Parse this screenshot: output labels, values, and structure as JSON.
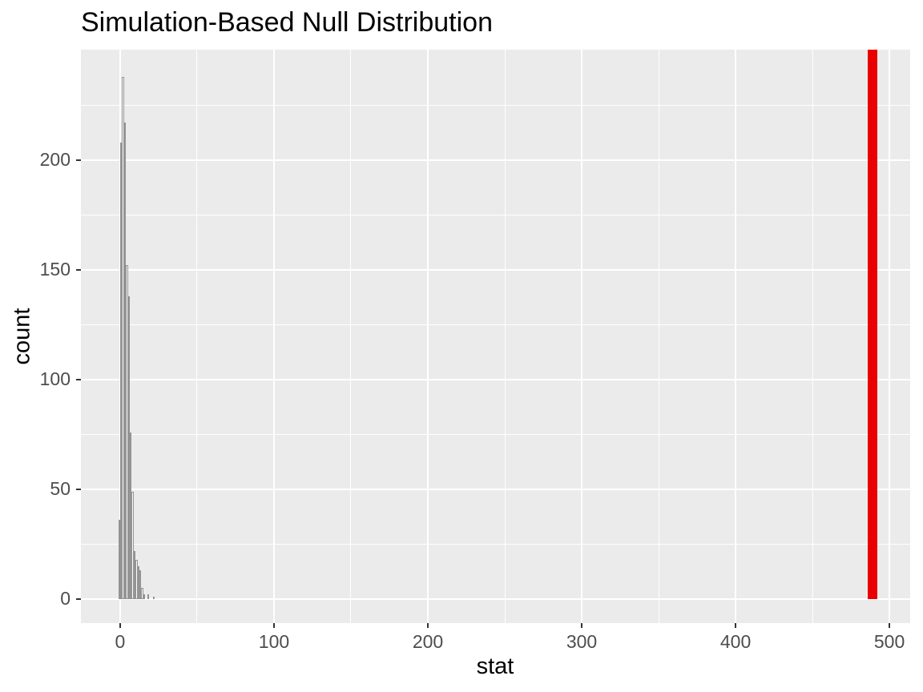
{
  "title": "Simulation-Based Null Distribution",
  "x_axis": {
    "label": "stat",
    "tick_labels": [
      "0",
      "100",
      "200",
      "300",
      "400",
      "500"
    ]
  },
  "y_axis": {
    "label": "count",
    "tick_labels": [
      "0",
      "50",
      "100",
      "150",
      "200"
    ]
  },
  "colors": {
    "panel_background": "#EBEBEB",
    "plot_background": "#FFFFFF",
    "gridline": "#FFFFFF",
    "bar_fill": "#FFFFFF",
    "bar_stroke": "#949494",
    "observed_stat_bar": "#E90000",
    "tick_label": "#4D4D4D",
    "tick_mark": "#333333",
    "title_text": "#000000",
    "axis_title_text": "#000000"
  },
  "chart_data": {
    "type": "bar",
    "subtype": "histogram",
    "title": "Simulation-Based Null Distribution",
    "xlabel": "stat",
    "ylabel": "count",
    "xlim": [
      -25.5,
      513.5
    ],
    "ylim": [
      -11.0,
      250.3
    ],
    "x_major_ticks": [
      0,
      100,
      200,
      300,
      400,
      500
    ],
    "x_minor_ticks": [
      50,
      150,
      250,
      350,
      450
    ],
    "y_major_ticks": [
      0,
      50,
      100,
      150,
      200
    ],
    "y_minor_ticks": [
      25,
      75,
      125,
      175,
      225
    ],
    "grid": "on",
    "legend": "none",
    "binwidth": 1.25,
    "bins": [
      {
        "center": -0.625,
        "count": 36
      },
      {
        "center": 0.625,
        "count": 208
      },
      {
        "center": 1.875,
        "count": 238
      },
      {
        "center": 3.125,
        "count": 217
      },
      {
        "center": 4.375,
        "count": 152
      },
      {
        "center": 5.625,
        "count": 138
      },
      {
        "center": 6.875,
        "count": 76
      },
      {
        "center": 8.125,
        "count": 49
      },
      {
        "center": 9.375,
        "count": 22
      },
      {
        "center": 10.625,
        "count": 18
      },
      {
        "center": 11.875,
        "count": 15
      },
      {
        "center": 13.125,
        "count": 13
      },
      {
        "center": 14.375,
        "count": 5
      },
      {
        "center": 15.625,
        "count": 2
      },
      {
        "center": 18.125,
        "count": 2
      },
      {
        "center": 21.875,
        "count": 1
      }
    ],
    "observed_stat": {
      "value": 489,
      "bar_width_units": 6.2,
      "extends_full_height": true
    }
  }
}
